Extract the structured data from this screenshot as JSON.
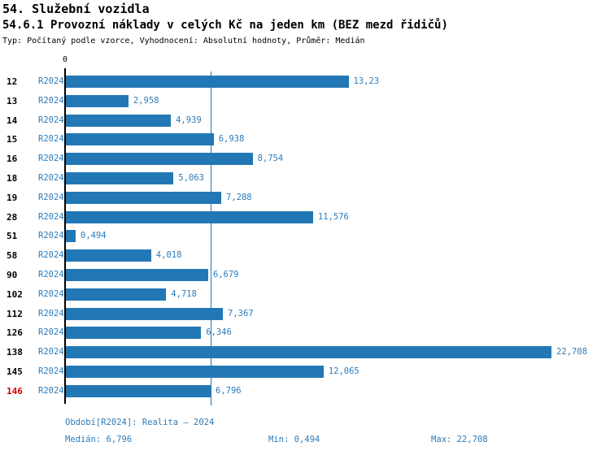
{
  "title": "54. Služební vozidla",
  "subtitle": "54.6.1 Provozní náklady v celých Kč na jeden km (BEZ mezd řidičů)",
  "meta_line": "Typ: Počítaný podle vzorce, Vyhodnocení: Absolutní hodnoty, Průměr: Medián",
  "axis": {
    "zero_label": "0"
  },
  "series_label": "R2024",
  "rows": [
    {
      "id": "12",
      "series": "R2024",
      "value": 13.23,
      "label": "13,23",
      "highlight": false
    },
    {
      "id": "13",
      "series": "R2024",
      "value": 2.958,
      "label": "2,958",
      "highlight": false
    },
    {
      "id": "14",
      "series": "R2024",
      "value": 4.939,
      "label": "4,939",
      "highlight": false
    },
    {
      "id": "15",
      "series": "R2024",
      "value": 6.938,
      "label": "6,938",
      "highlight": false
    },
    {
      "id": "16",
      "series": "R2024",
      "value": 8.754,
      "label": "8,754",
      "highlight": false
    },
    {
      "id": "18",
      "series": "R2024",
      "value": 5.063,
      "label": "5,063",
      "highlight": false
    },
    {
      "id": "19",
      "series": "R2024",
      "value": 7.288,
      "label": "7,288",
      "highlight": false
    },
    {
      "id": "28",
      "series": "R2024",
      "value": 11.576,
      "label": "11,576",
      "highlight": false
    },
    {
      "id": "51",
      "series": "R2024",
      "value": 0.494,
      "label": "0,494",
      "highlight": false
    },
    {
      "id": "58",
      "series": "R2024",
      "value": 4.018,
      "label": "4,018",
      "highlight": false
    },
    {
      "id": "90",
      "series": "R2024",
      "value": 6.679,
      "label": "6,679",
      "highlight": false
    },
    {
      "id": "102",
      "series": "R2024",
      "value": 4.718,
      "label": "4,718",
      "highlight": false
    },
    {
      "id": "112",
      "series": "R2024",
      "value": 7.367,
      "label": "7,367",
      "highlight": false
    },
    {
      "id": "126",
      "series": "R2024",
      "value": 6.346,
      "label": "6,346",
      "highlight": false
    },
    {
      "id": "138",
      "series": "R2024",
      "value": 22.708,
      "label": "22,708",
      "highlight": false
    },
    {
      "id": "145",
      "series": "R2024",
      "value": 12.065,
      "label": "12,065",
      "highlight": false
    },
    {
      "id": "146",
      "series": "R2024",
      "value": 6.796,
      "label": "6,796",
      "highlight": true
    }
  ],
  "footer": {
    "period": "Období[R2024]: Realita – 2024",
    "median": "Medián: 6,796",
    "min": "Min: 0,494",
    "max": "Max: 22,708"
  },
  "colors": {
    "bar_blue": "#2277b5",
    "text_blue": "#2b7bba",
    "highlight_red": "#d40000",
    "axis_black": "#000000"
  },
  "chart_data": {
    "type": "bar",
    "orientation": "horizontal",
    "title": "54.6.1 Provozní náklady v celých Kč na jeden km (BEZ mezd řidičů)",
    "categories": [
      "12",
      "13",
      "14",
      "15",
      "16",
      "18",
      "19",
      "28",
      "51",
      "58",
      "90",
      "102",
      "112",
      "126",
      "138",
      "145",
      "146"
    ],
    "series": [
      {
        "name": "R2024",
        "values": [
          13.23,
          2.958,
          4.939,
          6.938,
          8.754,
          5.063,
          7.288,
          11.576,
          0.494,
          4.018,
          6.679,
          4.718,
          7.367,
          6.346,
          22.708,
          12.065,
          6.796
        ]
      }
    ],
    "value_labels": [
      "13,23",
      "2,958",
      "4,939",
      "6,938",
      "8,754",
      "5,063",
      "7,288",
      "11,576",
      "0,494",
      "4,018",
      "6,679",
      "4,718",
      "7,367",
      "6,346",
      "22,708",
      "12,065",
      "6,796"
    ],
    "xlabel": "",
    "ylabel": "",
    "xlim": [
      0,
      24.5
    ],
    "grid": false,
    "legend_position": "none",
    "median_line_value": 6.796,
    "median": 6.796,
    "min": 0.494,
    "max": 22.708,
    "highlighted_category": "146"
  }
}
